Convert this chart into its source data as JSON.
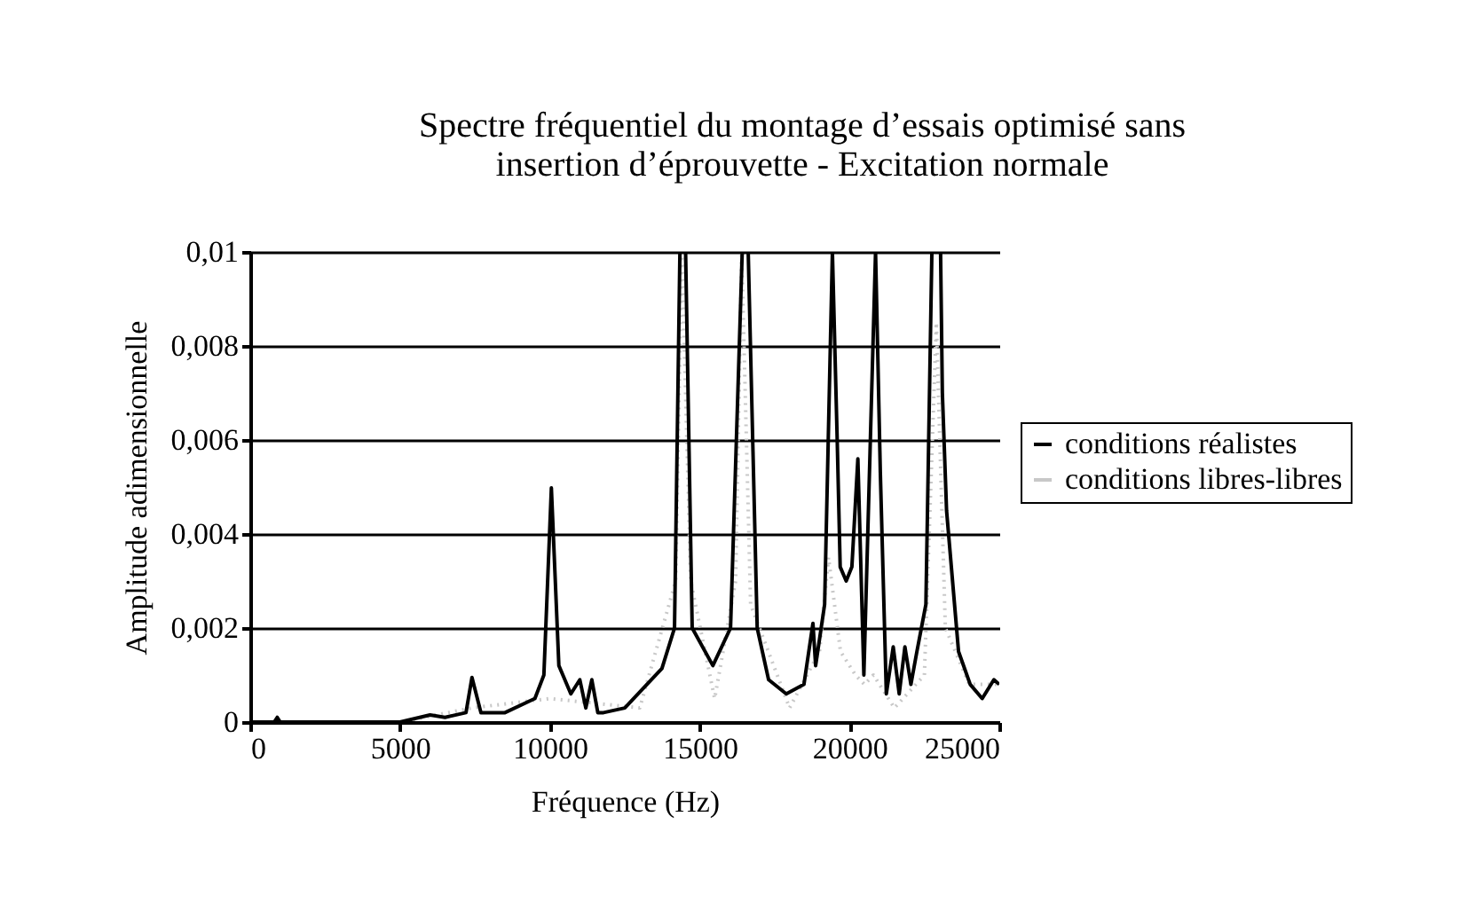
{
  "chart_data": {
    "type": "line",
    "title": "Spectre fréquentiel du montage d’essais optimisé sans\ninsertion d’éprouvette - Excitation normale",
    "xlabel": "Fréquence (Hz)",
    "ylabel": "Amplitude adimensionnelle",
    "xlim": [
      0,
      25000
    ],
    "xticks": [
      0,
      5000,
      10000,
      15000,
      20000,
      25000
    ],
    "ylim": [
      0,
      0.01
    ],
    "yticks": [
      0,
      {
        "value": 0.002,
        "label": "0,002"
      },
      {
        "value": 0.004,
        "label": "0,004"
      },
      {
        "value": 0.006,
        "label": "0,006"
      },
      {
        "value": 0.008,
        "label": "0,008"
      },
      {
        "value": 0.01,
        "label": "0,01"
      }
    ],
    "grid": "y",
    "legend": "right",
    "series": [
      {
        "name": "conditions réalistes",
        "color": "#000000",
        "line_style": "solid",
        "x": [
          0,
          800,
          900,
          1000,
          5000,
          6000,
          6500,
          7200,
          7400,
          7700,
          8500,
          9500,
          9800,
          10050,
          10300,
          10700,
          11000,
          11200,
          11400,
          11600,
          11790,
          12500,
          13740,
          14160,
          14340,
          14530,
          14750,
          15440,
          16030,
          16420,
          16620,
          16920,
          17300,
          17890,
          18480,
          18780,
          18870,
          19170,
          19430,
          19590,
          19690,
          19890,
          20080,
          20280,
          20480,
          20870,
          21030,
          21230,
          21460,
          21660,
          21850,
          22050,
          22250,
          22550,
          22750,
          23040,
          23100,
          23240,
          23640,
          24030,
          24430,
          24820,
          25000
        ],
        "values": [
          0,
          0,
          0.0001,
          0,
          0,
          0.00015,
          0.0001,
          0.0002,
          0.00095,
          0.0002,
          0.0002,
          0.0005,
          0.001,
          0.00498,
          0.0012,
          0.0006,
          0.0009,
          0.0003,
          0.0009,
          0.0002,
          0.0002,
          0.0003,
          0.00114,
          0.002,
          0.01,
          0.01,
          0.002,
          0.0012,
          0.002,
          0.01,
          0.01,
          0.002,
          0.0009,
          0.0006,
          0.0008,
          0.0021,
          0.0012,
          0.0025,
          0.01,
          0.006,
          0.0033,
          0.003,
          0.0033,
          0.0056,
          0.001,
          0.01,
          0.0053,
          0.0006,
          0.0016,
          0.0006,
          0.0016,
          0.0008,
          0.0015,
          0.0025,
          0.01,
          0.01,
          0.007,
          0.0045,
          0.0015,
          0.0008,
          0.0005,
          0.0009,
          0.0008
        ]
      },
      {
        "name": "conditions libres-libres",
        "color": "#c8c8c8",
        "line_style": "dotted",
        "x": [
          0,
          5000,
          7400,
          10000,
          13000,
          14200,
          14400,
          14700,
          15500,
          16200,
          16400,
          16700,
          18000,
          19000,
          19300,
          19700,
          20200,
          20500,
          20800,
          21500,
          22500,
          22900,
          23200,
          24000,
          25000
        ],
        "values": [
          0,
          0,
          0.0003,
          0.0005,
          0.0003,
          0.003,
          0.01,
          0.003,
          0.0005,
          0.003,
          0.01,
          0.0025,
          0.0003,
          0.0015,
          0.0035,
          0.0015,
          0.001,
          0.0008,
          0.001,
          0.0003,
          0.001,
          0.0085,
          0.002,
          0.0008,
          0.0008
        ]
      }
    ]
  }
}
